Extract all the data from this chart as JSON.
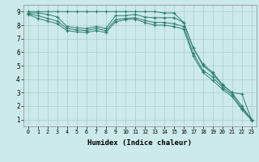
{
  "xlabel": "Humidex (Indice chaleur)",
  "bg_color": "#cceaea",
  "line_color": "#2e7d6e",
  "grid_color": "#aacccc",
  "xlim": [
    -0.5,
    23.5
  ],
  "ylim": [
    0.5,
    9.5
  ],
  "xticks": [
    0,
    1,
    2,
    3,
    4,
    5,
    6,
    7,
    8,
    9,
    10,
    11,
    12,
    13,
    14,
    15,
    16,
    17,
    18,
    19,
    20,
    21,
    22,
    23
  ],
  "yticks": [
    1,
    2,
    3,
    4,
    5,
    6,
    7,
    8,
    9
  ],
  "lines": [
    {
      "x": [
        0,
        1,
        2,
        3,
        4,
        5,
        6,
        7,
        8,
        9,
        10,
        11,
        12,
        13,
        14,
        15,
        16,
        17,
        18,
        19,
        20,
        21,
        22,
        23
      ],
      "y": [
        9.0,
        9.0,
        9.0,
        9.0,
        9.0,
        9.0,
        9.0,
        9.0,
        9.0,
        9.0,
        9.0,
        9.0,
        9.0,
        9.0,
        8.9,
        8.9,
        8.2,
        6.3,
        5.1,
        4.5,
        3.6,
        3.0,
        2.9,
        1.0
      ]
    },
    {
      "x": [
        0,
        1,
        2,
        3,
        4,
        5,
        6,
        7,
        8,
        9,
        10,
        11,
        12,
        13,
        14,
        15,
        16,
        17,
        18,
        19,
        20,
        21,
        22,
        23
      ],
      "y": [
        8.9,
        8.9,
        8.8,
        8.6,
        7.9,
        7.8,
        7.75,
        7.9,
        7.75,
        8.7,
        8.7,
        8.8,
        8.6,
        8.55,
        8.55,
        8.55,
        8.2,
        6.3,
        5.0,
        4.4,
        3.55,
        3.0,
        2.0,
        1.0
      ]
    },
    {
      "x": [
        0,
        1,
        2,
        3,
        4,
        5,
        6,
        7,
        8,
        9,
        10,
        11,
        12,
        13,
        14,
        15,
        16,
        17,
        18,
        19,
        20,
        21,
        22,
        23
      ],
      "y": [
        8.85,
        8.7,
        8.5,
        8.3,
        7.75,
        7.65,
        7.6,
        7.75,
        7.6,
        8.4,
        8.5,
        8.55,
        8.35,
        8.2,
        8.2,
        8.1,
        7.9,
        5.9,
        4.65,
        4.15,
        3.4,
        2.85,
        1.85,
        1.0
      ]
    },
    {
      "x": [
        0,
        1,
        2,
        3,
        4,
        5,
        6,
        7,
        8,
        9,
        10,
        11,
        12,
        13,
        14,
        15,
        16,
        17,
        18,
        19,
        20,
        21,
        22,
        23
      ],
      "y": [
        8.8,
        8.5,
        8.3,
        8.1,
        7.6,
        7.5,
        7.45,
        7.6,
        7.45,
        8.25,
        8.4,
        8.45,
        8.2,
        8.0,
        8.0,
        7.9,
        7.7,
        5.7,
        4.5,
        3.9,
        3.25,
        2.7,
        1.75,
        0.95
      ]
    }
  ]
}
